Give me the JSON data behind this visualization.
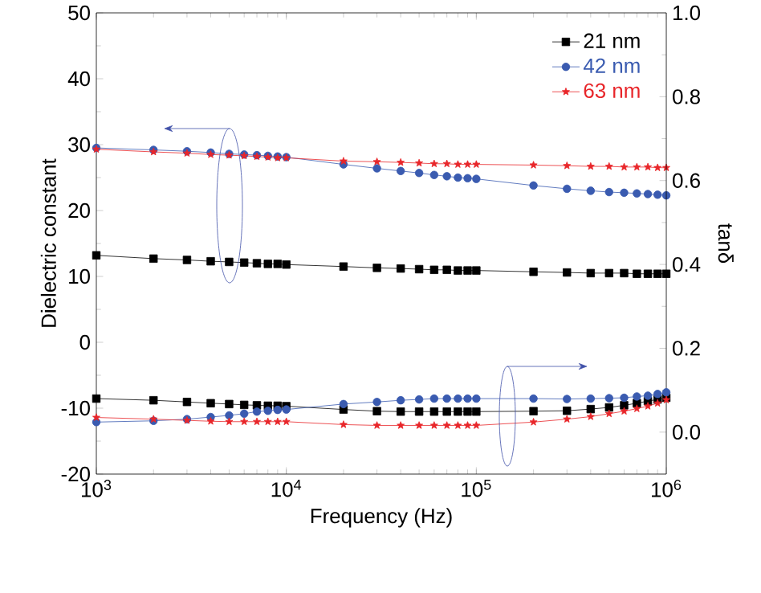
{
  "chart_data": {
    "type": "line",
    "xlabel": "Frequency (Hz)",
    "ylabel": "Dielectric constant",
    "y2label": "tanδ",
    "log": "x",
    "xlim": [
      1000,
      1000000
    ],
    "xticks": [
      {
        "value": 1000,
        "label": "10$^{3}$"
      },
      {
        "value": 10000,
        "label": "10$^{4}$"
      },
      {
        "value": 100000,
        "label": "10$^{5}$"
      },
      {
        "value": 1000000,
        "label": "10$^{6}$"
      }
    ],
    "ylim": [
      -20,
      50
    ],
    "yticks": [
      -20,
      -10,
      0,
      10,
      20,
      30,
      40,
      50
    ],
    "y2lim": [
      -0.1,
      1.0
    ],
    "y2ticks": [
      {
        "value": 0,
        "label": "0.0"
      },
      0.2,
      0.4,
      0.6,
      0.8,
      {
        "value": 1,
        "label": "1.0"
      }
    ],
    "legend": "top right",
    "grid": false,
    "x": [
      1000,
      2000,
      3000,
      4000,
      5000,
      6000,
      7000,
      8000,
      9000,
      10000,
      20000,
      30000,
      40000,
      50000,
      60000,
      70000,
      80000,
      90000,
      100000,
      200000,
      300000,
      400000,
      500000,
      600000,
      700000,
      800000,
      900000,
      1000000
    ],
    "series": [
      {
        "name": "21 nm",
        "color": "#000000",
        "marker": "square",
        "values": [
          13.2,
          12.7,
          12.5,
          12.3,
          12.2,
          12.1,
          12.0,
          11.9,
          11.9,
          11.8,
          11.5,
          11.3,
          11.2,
          11.1,
          11.0,
          11.0,
          10.9,
          10.9,
          10.9,
          10.7,
          10.6,
          10.5,
          10.5,
          10.5,
          10.4,
          10.4,
          10.4,
          10.4
        ]
      },
      {
        "name": "42 nm",
        "color": "#3a5bb0",
        "marker": "circle",
        "values": [
          29.5,
          29.2,
          29.0,
          28.8,
          28.6,
          28.5,
          28.4,
          28.3,
          28.2,
          28.1,
          27.0,
          26.4,
          26.0,
          25.7,
          25.4,
          25.2,
          25.0,
          24.9,
          24.8,
          23.8,
          23.3,
          23.0,
          22.8,
          22.7,
          22.6,
          22.5,
          22.4,
          22.3
        ]
      },
      {
        "name": "63 nm",
        "color": "#e8262a",
        "marker": "star",
        "values": [
          29.3,
          28.9,
          28.7,
          28.5,
          28.4,
          28.3,
          28.2,
          28.1,
          28.0,
          28.0,
          27.5,
          27.4,
          27.3,
          27.2,
          27.1,
          27.1,
          27.0,
          27.0,
          27.0,
          26.9,
          26.8,
          26.7,
          26.7,
          26.6,
          26.6,
          26.6,
          26.5,
          26.5
        ]
      },
      {
        "color": "#000000",
        "marker": "square",
        "axis": "y2",
        "values": [
          0.08,
          0.076,
          0.072,
          0.069,
          0.067,
          0.065,
          0.064,
          0.063,
          0.063,
          0.062,
          0.054,
          0.05,
          0.049,
          0.049,
          0.049,
          0.049,
          0.049,
          0.049,
          0.049,
          0.05,
          0.051,
          0.055,
          0.059,
          0.064,
          0.069,
          0.074,
          0.078,
          0.082
        ]
      },
      {
        "color": "#3a5bb0",
        "marker": "circle",
        "axis": "y2",
        "values": [
          0.024,
          0.027,
          0.031,
          0.036,
          0.04,
          0.044,
          0.049,
          0.051,
          0.053,
          0.054,
          0.067,
          0.072,
          0.076,
          0.078,
          0.08,
          0.08,
          0.08,
          0.08,
          0.08,
          0.08,
          0.079,
          0.08,
          0.081,
          0.082,
          0.085,
          0.087,
          0.091,
          0.095
        ]
      },
      {
        "color": "#e8262a",
        "marker": "star",
        "axis": "y2",
        "values": [
          0.035,
          0.031,
          0.028,
          0.026,
          0.025,
          0.025,
          0.025,
          0.025,
          0.025,
          0.025,
          0.018,
          0.016,
          0.016,
          0.016,
          0.016,
          0.016,
          0.016,
          0.016,
          0.016,
          0.024,
          0.031,
          0.037,
          0.044,
          0.05,
          0.056,
          0.062,
          0.069,
          0.077
        ]
      }
    ]
  }
}
